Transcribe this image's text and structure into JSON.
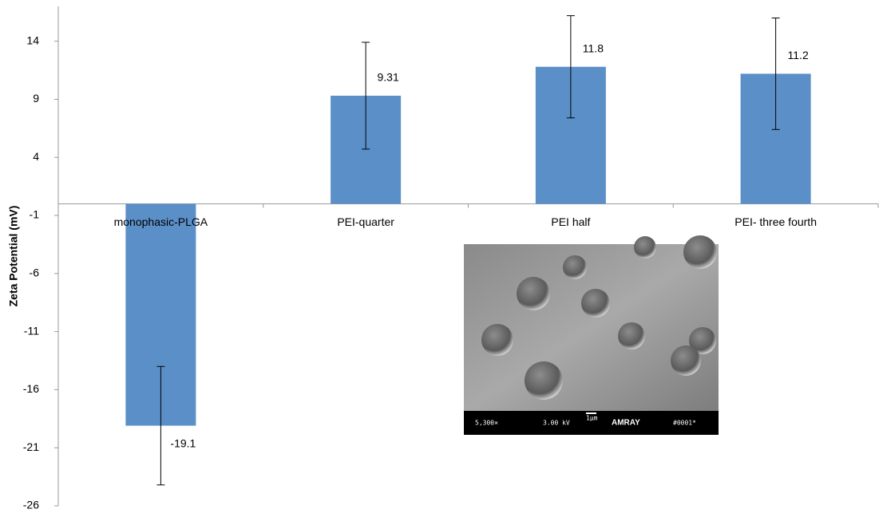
{
  "chart_data": {
    "type": "bar",
    "y_label": "Zeta Potential (mV)",
    "categories": [
      "monophasic-PLGA",
      "PEI-quarter",
      "PEI half",
      "PEI- three fourth"
    ],
    "values": [
      -19.1,
      9.31,
      11.8,
      11.2
    ],
    "errors": [
      5.1,
      4.6,
      4.4,
      4.8
    ],
    "color": "#5b8fc7",
    "ylim": [
      -26,
      17
    ],
    "yticks": [
      -26,
      -21,
      -16,
      -11,
      -6,
      -1,
      4,
      9,
      14
    ],
    "grid": false
  },
  "inset": {
    "labels": [
      "5,300×",
      "3.00 kV",
      "1μm",
      "AMRAY",
      "#0001*"
    ]
  }
}
